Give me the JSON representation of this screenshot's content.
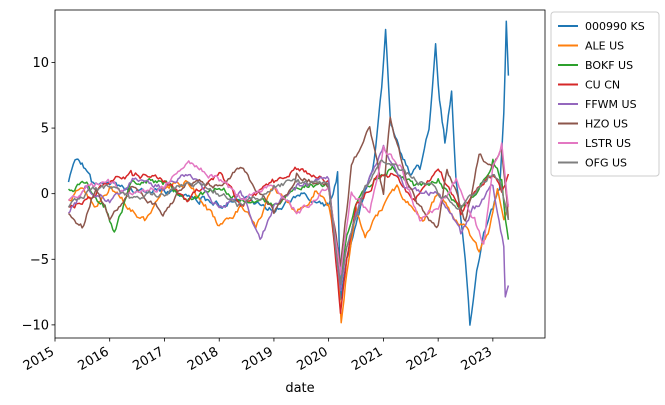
{
  "chart_data": {
    "type": "line",
    "title": "",
    "xlabel": "date",
    "ylabel": "",
    "xlim": [
      "2015-01-01",
      "2023-12-15"
    ],
    "ylim": [
      -11,
      14
    ],
    "x_ticks": [
      "2015",
      "2016",
      "2017",
      "2018",
      "2019",
      "2020",
      "2021",
      "2022",
      "2023"
    ],
    "y_ticks": [
      -10,
      -5,
      0,
      5,
      10
    ],
    "grid": false,
    "legend_position": "outside-upper-right",
    "series": [
      {
        "name": "000990 KS",
        "color": "#1f77b4",
        "points": [
          [
            "2015-04-01",
            0.8
          ],
          [
            "2015-05-15",
            2.4
          ],
          [
            "2015-07-01",
            2.2
          ],
          [
            "2015-09-01",
            1.0
          ],
          [
            "2016-01-01",
            0.5
          ],
          [
            "2016-06-01",
            0.3
          ],
          [
            "2017-01-01",
            0.2
          ],
          [
            "2017-09-01",
            -0.5
          ],
          [
            "2018-01-01",
            -0.8
          ],
          [
            "2018-06-01",
            -0.3
          ],
          [
            "2019-01-01",
            -1.2
          ],
          [
            "2019-08-01",
            0.0
          ],
          [
            "2020-01-01",
            -1.0
          ],
          [
            "2020-03-01",
            1.5
          ],
          [
            "2020-03-20",
            -8.0
          ],
          [
            "2020-05-01",
            -5.0
          ],
          [
            "2020-08-01",
            -1.0
          ],
          [
            "2020-11-01",
            2.5
          ],
          [
            "2020-12-20",
            8.0
          ],
          [
            "2021-01-15",
            12.5
          ],
          [
            "2021-02-15",
            6.0
          ],
          [
            "2021-03-01",
            5.0
          ],
          [
            "2021-05-01",
            3.0
          ],
          [
            "2021-07-01",
            1.5
          ],
          [
            "2021-09-01",
            2.0
          ],
          [
            "2021-11-01",
            5.0
          ],
          [
            "2021-12-15",
            11.5
          ],
          [
            "2022-01-10",
            7.0
          ],
          [
            "2022-02-15",
            4.0
          ],
          [
            "2022-04-01",
            8.0
          ],
          [
            "2022-05-01",
            1.0
          ],
          [
            "2022-06-01",
            -2.0
          ],
          [
            "2022-07-01",
            -5.0
          ],
          [
            "2022-08-01",
            -10.0
          ],
          [
            "2022-09-15",
            -6.0
          ],
          [
            "2022-11-01",
            -3.0
          ],
          [
            "2023-01-01",
            -1.0
          ],
          [
            "2023-02-15",
            0.5
          ],
          [
            "2023-03-15",
            6.0
          ],
          [
            "2023-04-01",
            13.0
          ],
          [
            "2023-04-15",
            9.0
          ]
        ]
      },
      {
        "name": "ALE US",
        "color": "#ff7f0e",
        "points": [
          [
            "2015-04-01",
            -0.5
          ],
          [
            "2015-07-01",
            0.5
          ],
          [
            "2015-10-01",
            -1.0
          ],
          [
            "2016-01-01",
            0.5
          ],
          [
            "2016-05-01",
            -1.0
          ],
          [
            "2016-09-01",
            -2.0
          ],
          [
            "2017-01-01",
            0.5
          ],
          [
            "2017-06-01",
            1.0
          ],
          [
            "2017-10-01",
            -1.0
          ],
          [
            "2018-01-01",
            -2.5
          ],
          [
            "2018-06-01",
            -1.0
          ],
          [
            "2018-09-01",
            -2.5
          ],
          [
            "2019-01-01",
            0.5
          ],
          [
            "2019-06-01",
            -1.5
          ],
          [
            "2019-10-01",
            0.0
          ],
          [
            "2020-01-01",
            -1.0
          ],
          [
            "2020-03-01",
            -5.0
          ],
          [
            "2020-03-25",
            -10.0
          ],
          [
            "2020-05-01",
            -6.0
          ],
          [
            "2020-07-01",
            -1.0
          ],
          [
            "2020-09-01",
            -3.5
          ],
          [
            "2020-11-01",
            -2.0
          ],
          [
            "2021-01-01",
            -1.0
          ],
          [
            "2021-04-01",
            0.5
          ],
          [
            "2021-07-01",
            -1.0
          ],
          [
            "2021-10-01",
            -2.0
          ],
          [
            "2022-01-01",
            0.0
          ],
          [
            "2022-05-01",
            -2.0
          ],
          [
            "2022-08-01",
            -3.0
          ],
          [
            "2022-10-01",
            -4.5
          ],
          [
            "2022-12-01",
            -3.0
          ],
          [
            "2023-02-01",
            0.5
          ],
          [
            "2023-03-15",
            -2.0
          ],
          [
            "2023-04-15",
            -0.8
          ]
        ]
      },
      {
        "name": "BOKF US",
        "color": "#2ca02c",
        "points": [
          [
            "2015-04-01",
            0.3
          ],
          [
            "2015-08-01",
            0.8
          ],
          [
            "2015-12-01",
            -1.0
          ],
          [
            "2016-02-01",
            -3.0
          ],
          [
            "2016-06-01",
            1.0
          ],
          [
            "2017-01-01",
            0.8
          ],
          [
            "2017-06-01",
            -0.5
          ],
          [
            "2018-01-01",
            0.5
          ],
          [
            "2018-06-01",
            -0.5
          ],
          [
            "2019-01-01",
            -0.8
          ],
          [
            "2019-06-01",
            0.5
          ],
          [
            "2020-01-01",
            0.8
          ],
          [
            "2020-03-20",
            -7.0
          ],
          [
            "2020-05-01",
            -3.0
          ],
          [
            "2020-08-01",
            0.0
          ],
          [
            "2020-11-01",
            1.0
          ],
          [
            "2021-03-01",
            2.0
          ],
          [
            "2021-08-01",
            0.5
          ],
          [
            "2022-01-01",
            1.0
          ],
          [
            "2022-06-01",
            -1.0
          ],
          [
            "2022-10-01",
            0.5
          ],
          [
            "2023-01-01",
            2.5
          ],
          [
            "2023-03-01",
            1.0
          ],
          [
            "2023-03-25",
            -2.0
          ],
          [
            "2023-04-15",
            -3.5
          ]
        ]
      },
      {
        "name": "CU CN",
        "color": "#d62728",
        "points": [
          [
            "2015-04-01",
            -1.0
          ],
          [
            "2015-08-01",
            -0.5
          ],
          [
            "2015-12-01",
            0.8
          ],
          [
            "2016-06-01",
            1.5
          ],
          [
            "2017-01-01",
            1.0
          ],
          [
            "2017-06-01",
            -0.5
          ],
          [
            "2018-01-01",
            1.5
          ],
          [
            "2018-06-01",
            -1.0
          ],
          [
            "2019-01-01",
            1.0
          ],
          [
            "2019-06-01",
            2.0
          ],
          [
            "2020-01-01",
            1.0
          ],
          [
            "2020-03-20",
            -9.0
          ],
          [
            "2020-05-01",
            -5.0
          ],
          [
            "2020-07-01",
            -1.0
          ],
          [
            "2020-11-01",
            1.0
          ],
          [
            "2021-03-01",
            1.5
          ],
          [
            "2021-08-01",
            -0.5
          ],
          [
            "2022-01-01",
            2.0
          ],
          [
            "2022-06-01",
            -1.5
          ],
          [
            "2022-10-01",
            0.5
          ],
          [
            "2023-01-01",
            1.5
          ],
          [
            "2023-03-01",
            0.0
          ],
          [
            "2023-04-15",
            1.5
          ]
        ]
      },
      {
        "name": "FFWM US",
        "color": "#9467bd",
        "points": [
          [
            "2015-04-01",
            -1.5
          ],
          [
            "2015-08-01",
            0.5
          ],
          [
            "2016-01-01",
            -0.5
          ],
          [
            "2016-06-01",
            1.0
          ],
          [
            "2017-01-01",
            0.5
          ],
          [
            "2017-06-01",
            1.5
          ],
          [
            "2018-01-01",
            -1.0
          ],
          [
            "2018-06-01",
            0.0
          ],
          [
            "2018-10-01",
            -3.5
          ],
          [
            "2019-01-01",
            -1.0
          ],
          [
            "2019-06-01",
            0.5
          ],
          [
            "2020-01-01",
            1.0
          ],
          [
            "2020-03-20",
            -7.5
          ],
          [
            "2020-05-01",
            -4.0
          ],
          [
            "2020-08-01",
            -0.5
          ],
          [
            "2021-01-01",
            3.5
          ],
          [
            "2021-06-01",
            0.5
          ],
          [
            "2022-01-01",
            0.0
          ],
          [
            "2022-06-01",
            -3.0
          ],
          [
            "2022-09-01",
            -1.0
          ],
          [
            "2023-01-01",
            0.5
          ],
          [
            "2023-03-15",
            -4.0
          ],
          [
            "2023-03-25",
            -8.0
          ],
          [
            "2023-04-15",
            -7.0
          ]
        ]
      },
      {
        "name": "HZO US",
        "color": "#8c564b",
        "points": [
          [
            "2015-04-01",
            -1.5
          ],
          [
            "2015-07-01",
            -2.5
          ],
          [
            "2015-10-01",
            0.5
          ],
          [
            "2016-01-01",
            -2.0
          ],
          [
            "2016-06-01",
            0.5
          ],
          [
            "2017-01-01",
            -1.5
          ],
          [
            "2017-06-01",
            1.0
          ],
          [
            "2018-01-01",
            0.5
          ],
          [
            "2018-06-01",
            2.0
          ],
          [
            "2019-01-01",
            -1.5
          ],
          [
            "2019-06-01",
            1.5
          ],
          [
            "2020-01-01",
            0.5
          ],
          [
            "2020-03-20",
            -5.5
          ],
          [
            "2020-06-01",
            2.0
          ],
          [
            "2020-10-01",
            5.0
          ],
          [
            "2021-01-01",
            0.0
          ],
          [
            "2021-02-15",
            6.0
          ],
          [
            "2021-06-01",
            1.0
          ],
          [
            "2021-09-01",
            -1.0
          ],
          [
            "2022-01-01",
            -2.5
          ],
          [
            "2022-03-01",
            2.0
          ],
          [
            "2022-07-01",
            -2.0
          ],
          [
            "2022-10-01",
            3.0
          ],
          [
            "2023-01-01",
            2.0
          ],
          [
            "2023-03-01",
            3.5
          ],
          [
            "2023-04-15",
            -2.0
          ]
        ]
      },
      {
        "name": "LSTR US",
        "color": "#e377c2",
        "points": [
          [
            "2015-04-01",
            -0.5
          ],
          [
            "2015-08-01",
            0.5
          ],
          [
            "2016-01-01",
            1.0
          ],
          [
            "2016-06-01",
            0.0
          ],
          [
            "2017-01-01",
            0.5
          ],
          [
            "2017-06-01",
            2.5
          ],
          [
            "2018-01-01",
            1.0
          ],
          [
            "2018-06-01",
            -0.5
          ],
          [
            "2019-01-01",
            0.5
          ],
          [
            "2019-06-01",
            -1.5
          ],
          [
            "2020-01-01",
            0.5
          ],
          [
            "2020-03-20",
            -6.0
          ],
          [
            "2020-06-01",
            0.0
          ],
          [
            "2020-10-01",
            -1.5
          ],
          [
            "2021-01-01",
            3.5
          ],
          [
            "2021-05-01",
            2.0
          ],
          [
            "2021-09-01",
            -2.0
          ],
          [
            "2022-01-01",
            -1.0
          ],
          [
            "2022-05-01",
            1.0
          ],
          [
            "2022-09-01",
            -2.0
          ],
          [
            "2022-11-01",
            -4.0
          ],
          [
            "2023-01-01",
            2.0
          ],
          [
            "2023-03-01",
            4.0
          ],
          [
            "2023-04-15",
            -1.0
          ]
        ]
      },
      {
        "name": "OFG US",
        "color": "#7f7f7f",
        "points": [
          [
            "2015-04-01",
            -1.0
          ],
          [
            "2015-08-01",
            0.0
          ],
          [
            "2016-01-01",
            0.5
          ],
          [
            "2016-06-01",
            -0.5
          ],
          [
            "2017-01-01",
            0.0
          ],
          [
            "2017-06-01",
            1.0
          ],
          [
            "2018-01-01",
            0.0
          ],
          [
            "2018-06-01",
            -1.0
          ],
          [
            "2019-01-01",
            0.5
          ],
          [
            "2019-06-01",
            1.0
          ],
          [
            "2020-01-01",
            0.5
          ],
          [
            "2020-03-20",
            -7.0
          ],
          [
            "2020-05-01",
            -4.0
          ],
          [
            "2020-09-01",
            0.5
          ],
          [
            "2021-01-01",
            2.5
          ],
          [
            "2021-06-01",
            1.5
          ],
          [
            "2022-01-01",
            0.0
          ],
          [
            "2022-06-01",
            -1.0
          ],
          [
            "2022-10-01",
            0.5
          ],
          [
            "2023-01-01",
            1.5
          ],
          [
            "2023-03-01",
            0.5
          ],
          [
            "2023-04-15",
            -2.0
          ]
        ]
      }
    ]
  }
}
